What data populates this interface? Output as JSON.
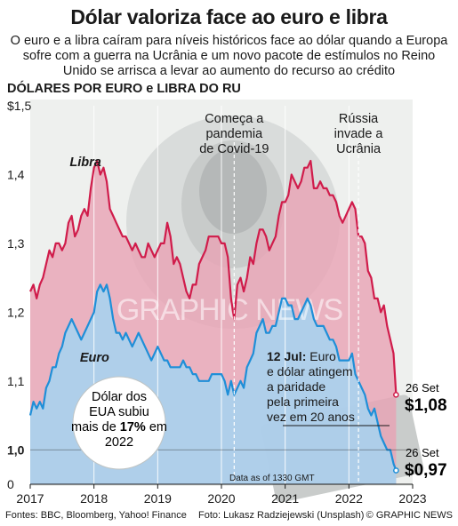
{
  "header": {
    "title": "Dólar valoriza face ao euro e libra",
    "subtitle": "O euro e a libra caíram para níveis históricos face ao dólar quando a Europa sofre com a guerra na Ucrânia e um novo pacote de estímulos no Reino Unido se arrisca a levar ao aumento do recurso ao crédito",
    "unit_label": "DÓLARES POR EURO e LIBRA DO RU"
  },
  "chart_data": {
    "type": "line",
    "x_range": [
      2017,
      2023
    ],
    "ylim": [
      0.95,
      1.5
    ],
    "y_ticks": [
      {
        "v": 1.5,
        "label": "$1,5"
      },
      {
        "v": 1.4,
        "label": "1,4"
      },
      {
        "v": 1.3,
        "label": "1,3"
      },
      {
        "v": 1.2,
        "label": "1,2"
      },
      {
        "v": 1.1,
        "label": "1,1"
      },
      {
        "v": 1.0,
        "label": "1,0"
      },
      {
        "v": 0.95,
        "label": "0"
      }
    ],
    "x_ticks": [
      "2017",
      "2018",
      "2019",
      "2020",
      "2021",
      "2022",
      "2023"
    ],
    "grid": "vertical at year boundaries",
    "series": [
      {
        "name": "Libra",
        "color": "#d01c4b",
        "fill": "#e8a2b4",
        "x": [
          2017.0,
          2017.05,
          2017.1,
          2017.15,
          2017.2,
          2017.25,
          2017.3,
          2017.35,
          2017.4,
          2017.45,
          2017.5,
          2017.55,
          2017.6,
          2017.65,
          2017.7,
          2017.75,
          2017.8,
          2017.85,
          2017.9,
          2017.95,
          2018.0,
          2018.05,
          2018.1,
          2018.15,
          2018.2,
          2018.25,
          2018.3,
          2018.35,
          2018.4,
          2018.45,
          2018.5,
          2018.55,
          2018.6,
          2018.65,
          2018.7,
          2018.75,
          2018.8,
          2018.85,
          2018.9,
          2018.95,
          2019.0,
          2019.05,
          2019.1,
          2019.15,
          2019.2,
          2019.25,
          2019.3,
          2019.35,
          2019.4,
          2019.45,
          2019.5,
          2019.55,
          2019.6,
          2019.65,
          2019.7,
          2019.75,
          2019.8,
          2019.85,
          2019.9,
          2019.95,
          2020.0,
          2020.05,
          2020.1,
          2020.15,
          2020.2,
          2020.25,
          2020.3,
          2020.35,
          2020.4,
          2020.45,
          2020.5,
          2020.55,
          2020.6,
          2020.65,
          2020.7,
          2020.75,
          2020.8,
          2020.85,
          2020.9,
          2020.95,
          2021.0,
          2021.05,
          2021.1,
          2021.15,
          2021.2,
          2021.25,
          2021.3,
          2021.35,
          2021.4,
          2021.45,
          2021.5,
          2021.55,
          2021.6,
          2021.65,
          2021.7,
          2021.75,
          2021.8,
          2021.85,
          2021.9,
          2021.95,
          2022.0,
          2022.05,
          2022.1,
          2022.15,
          2022.2,
          2022.25,
          2022.3,
          2022.35,
          2022.4,
          2022.45,
          2022.5,
          2022.55,
          2022.6,
          2022.65,
          2022.7,
          2022.74
        ],
        "values": [
          1.23,
          1.24,
          1.22,
          1.24,
          1.25,
          1.27,
          1.29,
          1.28,
          1.3,
          1.3,
          1.29,
          1.3,
          1.33,
          1.34,
          1.31,
          1.32,
          1.34,
          1.35,
          1.34,
          1.38,
          1.41,
          1.42,
          1.4,
          1.41,
          1.39,
          1.35,
          1.34,
          1.33,
          1.32,
          1.31,
          1.31,
          1.3,
          1.29,
          1.3,
          1.29,
          1.28,
          1.28,
          1.3,
          1.29,
          1.28,
          1.29,
          1.3,
          1.3,
          1.33,
          1.31,
          1.27,
          1.28,
          1.27,
          1.25,
          1.23,
          1.22,
          1.24,
          1.24,
          1.27,
          1.28,
          1.29,
          1.31,
          1.31,
          1.31,
          1.31,
          1.3,
          1.3,
          1.28,
          1.22,
          1.19,
          1.24,
          1.25,
          1.23,
          1.25,
          1.28,
          1.27,
          1.3,
          1.32,
          1.32,
          1.31,
          1.29,
          1.3,
          1.31,
          1.34,
          1.36,
          1.36,
          1.37,
          1.4,
          1.39,
          1.38,
          1.39,
          1.41,
          1.41,
          1.42,
          1.38,
          1.38,
          1.39,
          1.38,
          1.38,
          1.37,
          1.37,
          1.36,
          1.34,
          1.33,
          1.34,
          1.35,
          1.36,
          1.35,
          1.31,
          1.31,
          1.3,
          1.26,
          1.25,
          1.22,
          1.22,
          1.2,
          1.21,
          1.18,
          1.16,
          1.14,
          1.08
        ]
      },
      {
        "name": "Euro",
        "color": "#1f8fd8",
        "fill": "#a9d2ee",
        "x": [
          2017.0,
          2017.05,
          2017.1,
          2017.15,
          2017.2,
          2017.25,
          2017.3,
          2017.35,
          2017.4,
          2017.45,
          2017.5,
          2017.55,
          2017.6,
          2017.65,
          2017.7,
          2017.75,
          2017.8,
          2017.85,
          2017.9,
          2017.95,
          2018.0,
          2018.05,
          2018.1,
          2018.15,
          2018.2,
          2018.25,
          2018.3,
          2018.35,
          2018.4,
          2018.45,
          2018.5,
          2018.55,
          2018.6,
          2018.65,
          2018.7,
          2018.75,
          2018.8,
          2018.85,
          2018.9,
          2018.95,
          2019.0,
          2019.05,
          2019.1,
          2019.15,
          2019.2,
          2019.25,
          2019.3,
          2019.35,
          2019.4,
          2019.45,
          2019.5,
          2019.55,
          2019.6,
          2019.65,
          2019.7,
          2019.75,
          2019.8,
          2019.85,
          2019.9,
          2019.95,
          2020.0,
          2020.05,
          2020.1,
          2020.15,
          2020.2,
          2020.25,
          2020.3,
          2020.35,
          2020.4,
          2020.45,
          2020.5,
          2020.55,
          2020.6,
          2020.65,
          2020.7,
          2020.75,
          2020.8,
          2020.85,
          2020.9,
          2020.95,
          2021.0,
          2021.05,
          2021.1,
          2021.15,
          2021.2,
          2021.25,
          2021.3,
          2021.35,
          2021.4,
          2021.45,
          2021.5,
          2021.55,
          2021.6,
          2021.65,
          2021.7,
          2021.75,
          2021.8,
          2021.85,
          2021.9,
          2021.95,
          2022.0,
          2022.05,
          2022.1,
          2022.15,
          2022.2,
          2022.25,
          2022.3,
          2022.35,
          2022.4,
          2022.45,
          2022.5,
          2022.55,
          2022.6,
          2022.65,
          2022.7,
          2022.74
        ],
        "values": [
          1.05,
          1.07,
          1.06,
          1.07,
          1.06,
          1.09,
          1.1,
          1.12,
          1.12,
          1.14,
          1.15,
          1.17,
          1.18,
          1.19,
          1.18,
          1.17,
          1.16,
          1.17,
          1.18,
          1.19,
          1.2,
          1.23,
          1.24,
          1.23,
          1.24,
          1.22,
          1.19,
          1.17,
          1.17,
          1.16,
          1.17,
          1.16,
          1.15,
          1.16,
          1.17,
          1.16,
          1.15,
          1.14,
          1.13,
          1.14,
          1.15,
          1.14,
          1.13,
          1.13,
          1.12,
          1.12,
          1.12,
          1.12,
          1.13,
          1.12,
          1.12,
          1.11,
          1.11,
          1.1,
          1.1,
          1.1,
          1.1,
          1.11,
          1.11,
          1.11,
          1.11,
          1.1,
          1.08,
          1.1,
          1.08,
          1.09,
          1.1,
          1.09,
          1.12,
          1.13,
          1.14,
          1.17,
          1.18,
          1.19,
          1.17,
          1.17,
          1.18,
          1.18,
          1.2,
          1.22,
          1.22,
          1.21,
          1.21,
          1.19,
          1.19,
          1.2,
          1.21,
          1.22,
          1.21,
          1.19,
          1.18,
          1.18,
          1.18,
          1.17,
          1.16,
          1.16,
          1.15,
          1.13,
          1.13,
          1.13,
          1.13,
          1.14,
          1.11,
          1.1,
          1.09,
          1.08,
          1.06,
          1.05,
          1.06,
          1.04,
          1.02,
          1.01,
          1.0,
          1.0,
          0.98,
          0.97
        ]
      }
    ],
    "series_labels": [
      {
        "text": "Libra",
        "x": 2017.62,
        "y": 1.412,
        "color": "#d01c4b"
      },
      {
        "text": "Euro",
        "x": 2017.78,
        "y": 1.128,
        "color": "#1f5fa8"
      }
    ],
    "events": [
      {
        "x": 2020.2,
        "lines": [
          "Começa a",
          "pandemia",
          "de Covid-19"
        ]
      },
      {
        "x": 2022.15,
        "lines": [
          "Rússia",
          "invade a",
          "Ucrânia"
        ]
      }
    ],
    "annotation_parity": {
      "bold": "12 Jul:",
      "lines": [
        " Euro",
        "e dólar atingem",
        "a paridade",
        "pela primeira",
        "vez em 20 anos"
      ]
    },
    "end_labels": [
      {
        "date": "26 Set",
        "value": "$1,08"
      },
      {
        "date": "26 Set",
        "value": "$0,97"
      }
    ],
    "callout": {
      "line1": "Dólar dos",
      "line2": "EUA subiu",
      "line3_pre": "mais de ",
      "line3_bold": "17%",
      "line3_post": " em",
      "line4": "2022"
    },
    "data_note": "Data as of 1330 GMT",
    "watermark": "GRAPHIC NEWS"
  },
  "footer": {
    "sources": "Fontes: BBC, Bloomberg, Yahoo! Finance",
    "photo": "Foto: Lukasz Radziejewski (Unsplash)",
    "credit": "© GRAPHIC NEWS"
  }
}
